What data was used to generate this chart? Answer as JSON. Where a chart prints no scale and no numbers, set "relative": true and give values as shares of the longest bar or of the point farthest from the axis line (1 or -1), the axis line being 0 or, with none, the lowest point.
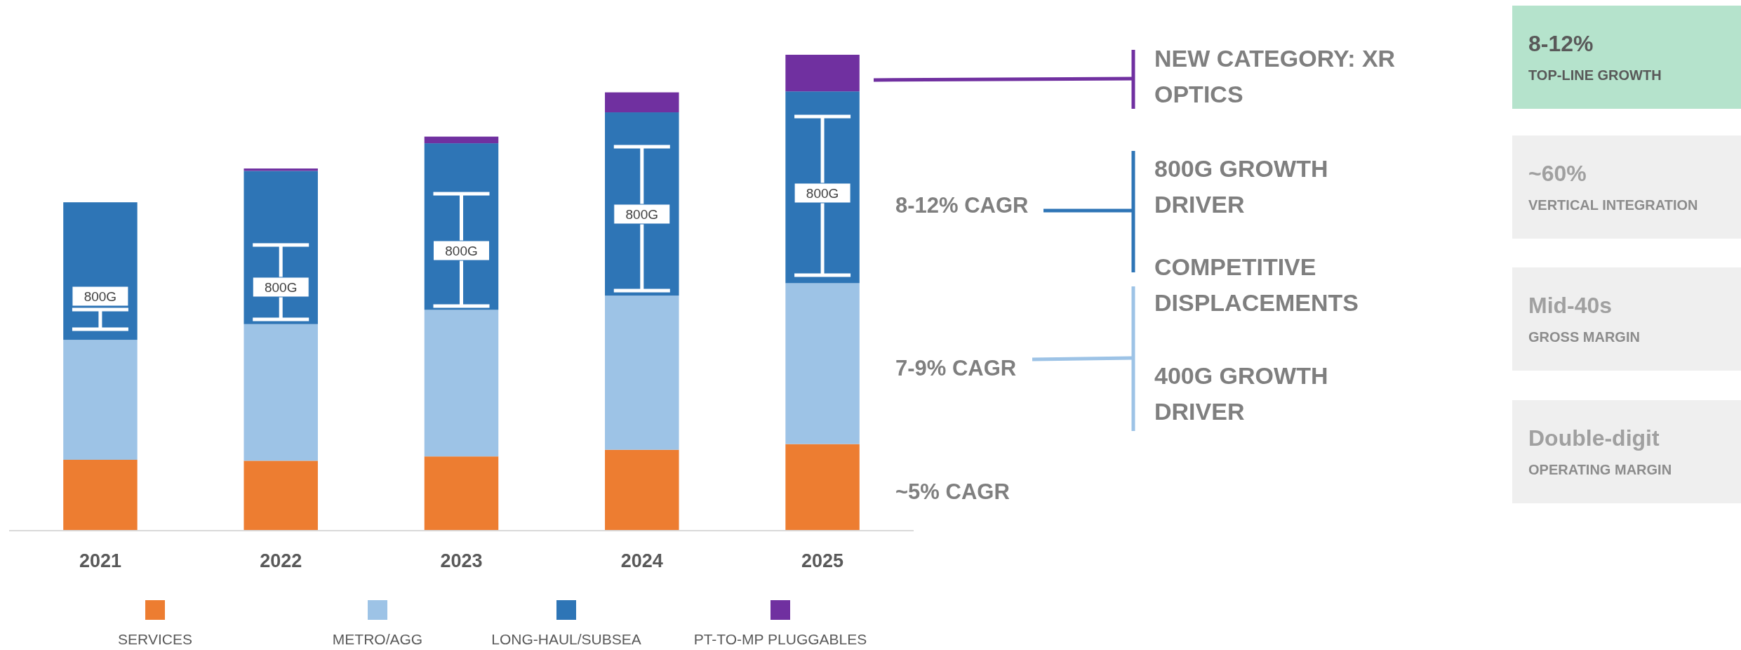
{
  "chart_data": {
    "type": "bar",
    "stacked": true,
    "relative": true,
    "legend": "bottom",
    "categories": [
      "2021",
      "2022",
      "2023",
      "2024",
      "2025"
    ],
    "series": [
      {
        "name": "SERVICES",
        "color": "#ed7d31",
        "values": [
          0.149,
          0.147,
          0.156,
          0.17,
          0.182
        ]
      },
      {
        "name": "METRO/AGG",
        "color": "#9dc3e6",
        "values": [
          0.252,
          0.287,
          0.308,
          0.324,
          0.338
        ]
      },
      {
        "name": "LONG-HAUL/SUBSEA",
        "color": "#2e75b6",
        "values": [
          0.289,
          0.322,
          0.35,
          0.385,
          0.403
        ]
      },
      {
        "name": "PT-TO-MP PLUGGABLES",
        "color": "#7030a0",
        "values": [
          0,
          0.005,
          0.014,
          0.042,
          0.077
        ]
      }
    ],
    "annotations": [
      "800G",
      "800G",
      "800G",
      "800G",
      "800G",
      "~5% CAGR",
      "7-9% CAGR",
      "8-12% CAGR",
      "NEW CATEGORY: XR OPTICS",
      "800G GROWTH DRIVER",
      "COMPETITIVE DISPLACEMENTS",
      "400G GROWTH DRIVER",
      "8-12%",
      "TOP-LINE GROWTH",
      "~60%",
      "VERTICAL INTEGRATION",
      "Mid-40s",
      "GROSS MARGIN",
      "Double-digit",
      "OPERATING MARGIN"
    ]
  }
}
